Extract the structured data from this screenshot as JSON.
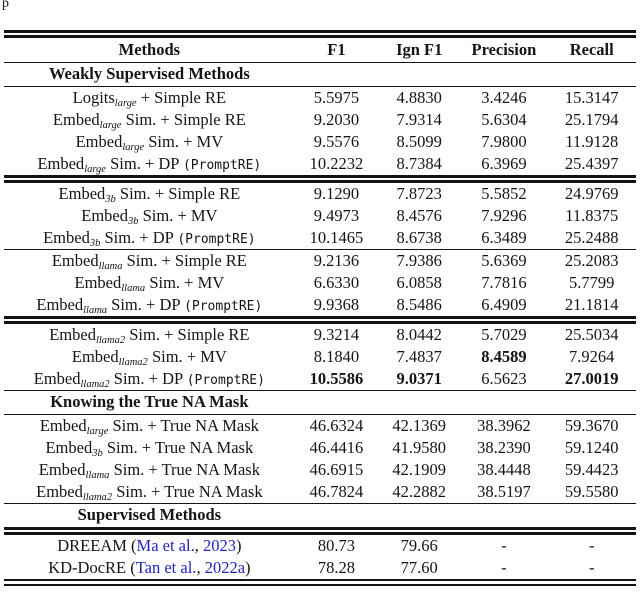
{
  "page": {
    "fragment": "p"
  },
  "colors": {
    "citation": "#2222c4",
    "text": "#151515"
  },
  "table": {
    "columns": [
      "Methods",
      "F1",
      "Ign F1",
      "Precision",
      "Recall"
    ],
    "rows": [
      {
        "type": "section",
        "rule": "single",
        "label": "Weakly Supervised Methods"
      },
      {
        "type": "data",
        "rule": "single",
        "method": [
          [
            "t",
            "Logits"
          ],
          [
            "sub",
            "large"
          ],
          [
            "t",
            " + Simple RE"
          ]
        ],
        "values": [
          "5.5975",
          "4.8830",
          "3.4246",
          "15.3147"
        ],
        "bold": []
      },
      {
        "type": "data",
        "rule": "none",
        "method": [
          [
            "t",
            "Embed"
          ],
          [
            "sub",
            "large"
          ],
          [
            "t",
            " Sim. + Simple RE"
          ]
        ],
        "values": [
          "9.2030",
          "7.9314",
          "5.6304",
          "25.1794"
        ],
        "bold": []
      },
      {
        "type": "data",
        "rule": "none",
        "method": [
          [
            "t",
            "Embed"
          ],
          [
            "sub",
            "large"
          ],
          [
            "t",
            " Sim. + MV"
          ]
        ],
        "values": [
          "9.5576",
          "8.5099",
          "7.9800",
          "11.9128"
        ],
        "bold": []
      },
      {
        "type": "data",
        "rule": "none",
        "method": [
          [
            "t",
            "Embed"
          ],
          [
            "sub",
            "large"
          ],
          [
            "t",
            " Sim. + DP "
          ],
          [
            "mono",
            "(PromptRE)"
          ]
        ],
        "values": [
          "10.2232",
          "8.7384",
          "6.3969",
          "25.4397"
        ],
        "bold": []
      },
      {
        "type": "data",
        "rule": "double",
        "method": [
          [
            "t",
            "Embed"
          ],
          [
            "sub",
            "3b"
          ],
          [
            "t",
            " Sim. + Simple RE"
          ]
        ],
        "values": [
          "9.1290",
          "7.8723",
          "5.5852",
          "24.9769"
        ],
        "bold": []
      },
      {
        "type": "data",
        "rule": "none",
        "method": [
          [
            "t",
            "Embed"
          ],
          [
            "sub",
            "3b"
          ],
          [
            "t",
            " Sim. + MV"
          ]
        ],
        "values": [
          "9.4973",
          "8.4576",
          "7.9296",
          "11.8375"
        ],
        "bold": []
      },
      {
        "type": "data",
        "rule": "none",
        "method": [
          [
            "t",
            "Embed"
          ],
          [
            "sub",
            "3b"
          ],
          [
            "t",
            " Sim. + DP "
          ],
          [
            "mono",
            "(PromptRE)"
          ]
        ],
        "values": [
          "10.1465",
          "8.6738",
          "6.3489",
          "25.2488"
        ],
        "bold": []
      },
      {
        "type": "data",
        "rule": "single",
        "method": [
          [
            "t",
            "Embed"
          ],
          [
            "sub",
            "llama"
          ],
          [
            "t",
            " Sim. + Simple RE"
          ]
        ],
        "values": [
          "9.2136",
          "7.9386",
          "5.6369",
          "25.2083"
        ],
        "bold": []
      },
      {
        "type": "data",
        "rule": "none",
        "method": [
          [
            "t",
            "Embed"
          ],
          [
            "sub",
            "llama"
          ],
          [
            "t",
            " Sim. + MV"
          ]
        ],
        "values": [
          "6.6330",
          "6.0858",
          "7.7816",
          "5.7799"
        ],
        "bold": []
      },
      {
        "type": "data",
        "rule": "none",
        "method": [
          [
            "t",
            "Embed"
          ],
          [
            "sub",
            "llama"
          ],
          [
            "t",
            " Sim. + DP "
          ],
          [
            "mono",
            "(PromptRE)"
          ]
        ],
        "values": [
          "9.9368",
          "8.5486",
          "6.4909",
          "21.1814"
        ],
        "bold": []
      },
      {
        "type": "data",
        "rule": "double",
        "method": [
          [
            "t",
            "Embed"
          ],
          [
            "sub",
            "llama2"
          ],
          [
            "t",
            " Sim. + Simple RE"
          ]
        ],
        "values": [
          "9.3214",
          "8.0442",
          "5.7029",
          "25.5034"
        ],
        "bold": []
      },
      {
        "type": "data",
        "rule": "none",
        "method": [
          [
            "t",
            "Embed"
          ],
          [
            "sub",
            "llama2"
          ],
          [
            "t",
            " Sim. + MV"
          ]
        ],
        "values": [
          "8.1840",
          "7.4837",
          "8.4589",
          "7.9264"
        ],
        "bold": [
          2
        ]
      },
      {
        "type": "data",
        "rule": "none",
        "method": [
          [
            "t",
            "Embed"
          ],
          [
            "sub",
            "llama2"
          ],
          [
            "t",
            " Sim. + DP "
          ],
          [
            "mono",
            "(PromptRE)"
          ]
        ],
        "values": [
          "10.5586",
          "9.0371",
          "6.5623",
          "27.0019"
        ],
        "bold": [
          0,
          1,
          3
        ]
      },
      {
        "type": "section",
        "rule": "single",
        "label": "Knowing the True NA Mask"
      },
      {
        "type": "data",
        "rule": "single",
        "method": [
          [
            "t",
            "Embed"
          ],
          [
            "sub",
            "large"
          ],
          [
            "t",
            " Sim. + True NA Mask"
          ]
        ],
        "values": [
          "46.6324",
          "42.1369",
          "38.3962",
          "59.3670"
        ],
        "bold": []
      },
      {
        "type": "data",
        "rule": "none",
        "method": [
          [
            "t",
            "Embed"
          ],
          [
            "sub",
            "3b"
          ],
          [
            "t",
            " Sim. + True NA Mask"
          ]
        ],
        "values": [
          "46.4416",
          "41.9580",
          "38.2390",
          "59.1240"
        ],
        "bold": []
      },
      {
        "type": "data",
        "rule": "none",
        "method": [
          [
            "t",
            "Embed"
          ],
          [
            "sub",
            "llama"
          ],
          [
            "t",
            " Sim. + True NA Mask"
          ]
        ],
        "values": [
          "46.6915",
          "42.1909",
          "38.4448",
          "59.4423"
        ],
        "bold": []
      },
      {
        "type": "data",
        "rule": "none",
        "method": [
          [
            "t",
            "Embed"
          ],
          [
            "sub",
            "llama2"
          ],
          [
            "t",
            " Sim. + True NA Mask"
          ]
        ],
        "values": [
          "46.7824",
          "42.2882",
          "38.5197",
          "59.5580"
        ],
        "bold": []
      },
      {
        "type": "section",
        "rule": "single",
        "label": "Supervised Methods"
      },
      {
        "type": "data",
        "rule": "double",
        "method": [
          [
            "t",
            "DREEAM ("
          ],
          [
            "cite",
            "Ma et al."
          ],
          [
            "t",
            ", "
          ],
          [
            "cite",
            "2023"
          ],
          [
            "t",
            ")"
          ]
        ],
        "values": [
          "80.73",
          "79.66",
          "-",
          "-"
        ],
        "bold": []
      },
      {
        "type": "data",
        "rule": "none",
        "method": [
          [
            "t",
            "KD-DocRE ("
          ],
          [
            "cite",
            "Tan et al."
          ],
          [
            "t",
            ", "
          ],
          [
            "cite",
            "2022a"
          ],
          [
            "t",
            ")"
          ]
        ],
        "values": [
          "78.28",
          "77.60",
          "-",
          "-"
        ],
        "bold": []
      }
    ]
  }
}
